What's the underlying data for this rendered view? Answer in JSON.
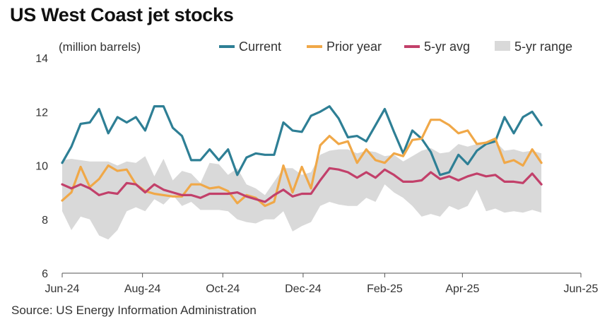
{
  "chart_data": {
    "type": "line",
    "title": "US West Coast jet stocks",
    "unit_label": "(million barrels)",
    "source": "Source: US Energy Information Administration",
    "yticks": [
      6,
      8,
      10,
      12,
      14
    ],
    "ylim": [
      6,
      14
    ],
    "xlim": [
      "2024-06-01",
      "2025-06-30"
    ],
    "xticks": [
      {
        "label": "Jun-24",
        "date": "2024-06-01"
      },
      {
        "label": "Aug-24",
        "date": "2024-08-01"
      },
      {
        "label": "Oct-24",
        "date": "2024-10-01"
      },
      {
        "label": "Dec-24",
        "date": "2024-12-01"
      },
      {
        "label": "Feb-25",
        "date": "2025-02-01"
      },
      {
        "label": "Apr-25",
        "date": "2025-04-01"
      },
      {
        "label": "Jun-25",
        "date": "2025-06-30"
      }
    ],
    "dates": [
      "2024-06-01",
      "2024-06-08",
      "2024-06-15",
      "2024-06-22",
      "2024-06-29",
      "2024-07-06",
      "2024-07-13",
      "2024-07-20",
      "2024-07-27",
      "2024-08-03",
      "2024-08-10",
      "2024-08-17",
      "2024-08-24",
      "2024-08-31",
      "2024-09-07",
      "2024-09-14",
      "2024-09-21",
      "2024-09-28",
      "2024-10-05",
      "2024-10-12",
      "2024-10-19",
      "2024-10-26",
      "2024-11-02",
      "2024-11-09",
      "2024-11-16",
      "2024-11-23",
      "2024-11-30",
      "2024-12-07",
      "2024-12-14",
      "2024-12-21",
      "2024-12-28",
      "2025-01-04",
      "2025-01-11",
      "2025-01-18",
      "2025-01-25",
      "2025-02-01",
      "2025-02-08",
      "2025-02-15",
      "2025-02-22",
      "2025-03-01",
      "2025-03-08",
      "2025-03-15",
      "2025-03-22",
      "2025-03-29",
      "2025-04-05",
      "2025-04-12",
      "2025-04-19",
      "2025-04-26",
      "2025-05-03",
      "2025-05-10",
      "2025-05-17",
      "2025-05-24",
      "2025-05-31",
      "2025-06-07",
      "2025-06-14",
      "2025-06-21",
      "2025-06-28"
    ],
    "legend_placement": "top",
    "grid": false,
    "series": [
      {
        "name": "Current",
        "color": "#2e7f95",
        "kind": "line",
        "values": [
          10.1,
          10.7,
          11.55,
          11.6,
          12.1,
          11.2,
          11.8,
          11.6,
          11.8,
          11.3,
          12.2,
          12.2,
          11.4,
          11.1,
          10.2,
          10.2,
          10.6,
          10.2,
          10.6,
          9.65,
          10.3,
          10.45,
          10.4,
          10.4,
          11.6,
          11.3,
          11.25,
          11.85,
          12.0,
          12.2,
          11.75,
          11.05,
          11.1,
          10.9,
          11.5,
          12.1,
          11.25,
          10.45,
          11.3,
          11.0,
          10.5,
          9.65,
          9.75,
          10.4,
          10.05,
          10.55,
          10.8,
          10.9,
          11.8,
          11.2,
          11.8,
          12.0,
          11.5,
          null,
          null,
          null,
          null
        ]
      },
      {
        "name": "Prior year",
        "color": "#f0a848",
        "kind": "line",
        "values": [
          8.7,
          9.0,
          9.95,
          9.2,
          9.5,
          10.0,
          9.8,
          9.85,
          9.3,
          9.05,
          8.95,
          8.9,
          8.85,
          8.85,
          9.3,
          9.3,
          9.15,
          9.2,
          9.05,
          8.6,
          8.9,
          8.8,
          8.5,
          8.65,
          10.0,
          9.0,
          9.95,
          9.15,
          10.75,
          11.1,
          10.8,
          10.9,
          10.1,
          10.6,
          10.2,
          10.1,
          10.45,
          10.35,
          10.95,
          11.0,
          11.7,
          11.7,
          11.5,
          11.2,
          11.3,
          10.8,
          10.85,
          11.0,
          10.1,
          10.2,
          10.0,
          10.6,
          10.1,
          null,
          null,
          null,
          null
        ]
      },
      {
        "name": "5-yr avg",
        "color": "#c2406a",
        "kind": "line",
        "values": [
          9.3,
          9.15,
          9.3,
          9.15,
          8.9,
          9.0,
          8.95,
          9.35,
          9.3,
          9.0,
          9.3,
          9.1,
          9.0,
          8.9,
          8.9,
          8.8,
          8.95,
          8.95,
          8.95,
          9.0,
          8.85,
          8.75,
          8.65,
          8.9,
          9.1,
          8.85,
          8.95,
          8.95,
          9.45,
          9.9,
          9.85,
          9.75,
          9.55,
          9.75,
          9.55,
          9.85,
          9.65,
          9.4,
          9.4,
          9.45,
          9.75,
          9.5,
          9.6,
          9.45,
          9.6,
          9.7,
          9.6,
          9.65,
          9.4,
          9.4,
          9.35,
          9.7,
          9.3,
          null,
          null,
          null,
          null
        ]
      },
      {
        "name": "5-yr range",
        "color": "#d9d9d9",
        "kind": "band",
        "low": [
          8.3,
          7.6,
          8.1,
          8.0,
          7.4,
          7.25,
          7.6,
          8.3,
          8.45,
          8.3,
          8.75,
          8.55,
          8.9,
          8.5,
          8.65,
          8.35,
          8.35,
          8.35,
          8.3,
          8.0,
          7.9,
          7.85,
          8.0,
          8.0,
          8.3,
          7.55,
          7.75,
          7.9,
          8.5,
          8.65,
          8.55,
          8.5,
          8.5,
          8.8,
          8.65,
          9.3,
          9.0,
          8.8,
          8.5,
          8.1,
          8.2,
          8.1,
          8.5,
          8.35,
          8.5,
          9.1,
          8.3,
          8.4,
          8.25,
          8.3,
          8.25,
          8.35,
          8.25,
          null,
          null,
          null,
          null
        ],
        "high": [
          10.2,
          10.25,
          10.2,
          10.15,
          10.15,
          10.15,
          10.0,
          10.15,
          10.1,
          10.35,
          9.6,
          10.25,
          9.45,
          9.8,
          9.7,
          9.35,
          10.1,
          10.05,
          9.65,
          9.9,
          9.3,
          9.15,
          8.9,
          9.4,
          9.9,
          9.9,
          9.65,
          9.75,
          10.4,
          10.55,
          10.6,
          10.6,
          10.45,
          10.55,
          10.5,
          10.35,
          10.4,
          10.15,
          10.35,
          10.55,
          10.65,
          10.45,
          10.5,
          10.8,
          10.7,
          10.8,
          10.9,
          10.9,
          10.55,
          10.6,
          10.5,
          10.55,
          10.45,
          null,
          null,
          null,
          null
        ]
      }
    ]
  }
}
